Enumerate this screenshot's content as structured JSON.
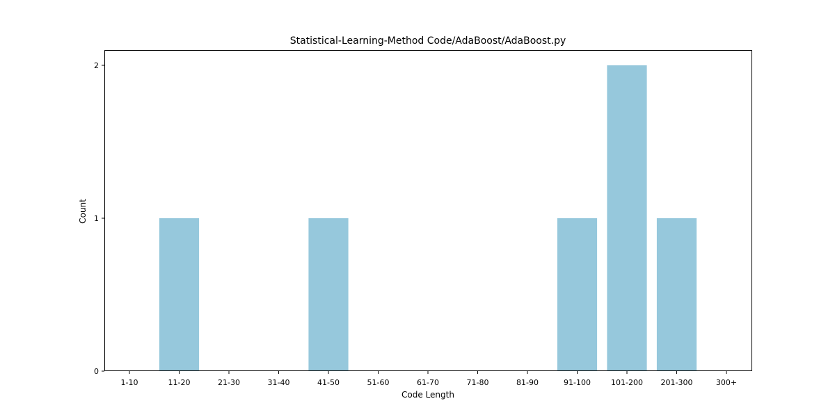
{
  "chart_data": {
    "type": "bar",
    "title": "Statistical-Learning-Method Code/AdaBoost/AdaBoost.py",
    "xlabel": "Code Length",
    "ylabel": "Count",
    "categories": [
      "1-10",
      "11-20",
      "21-30",
      "31-40",
      "41-50",
      "51-60",
      "61-70",
      "71-80",
      "81-90",
      "91-100",
      "101-200",
      "201-300",
      "300+"
    ],
    "values": [
      0,
      1,
      0,
      0,
      1,
      0,
      0,
      0,
      0,
      1,
      2,
      1,
      0
    ],
    "yticks": [
      0,
      1,
      2
    ],
    "ylim": [
      0,
      2.1
    ],
    "bar_color": "#96c8dc",
    "grid": false,
    "legend": "none"
  }
}
